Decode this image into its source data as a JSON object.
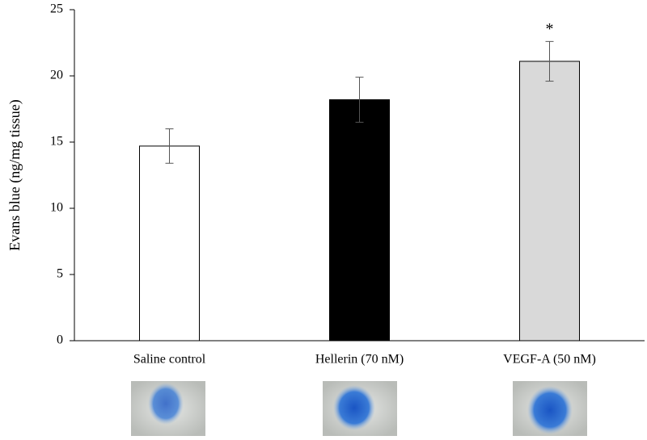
{
  "chart_data": {
    "type": "bar",
    "ylabel": "Evans blue (ng/mg tissue)",
    "categories": [
      "Saline control",
      "Hellerin (70 nM)",
      "VEGF-A (50 nM)"
    ],
    "values": [
      14.7,
      18.2,
      21.1
    ],
    "errors": [
      1.3,
      1.7,
      1.5
    ],
    "colors": [
      "#ffffff",
      "#000000",
      "#d9d9d9"
    ],
    "annotations": [
      null,
      null,
      "*"
    ],
    "ylim": [
      0,
      25
    ],
    "yticks": [
      0,
      5,
      10,
      15,
      20,
      25
    ],
    "grid": false
  }
}
